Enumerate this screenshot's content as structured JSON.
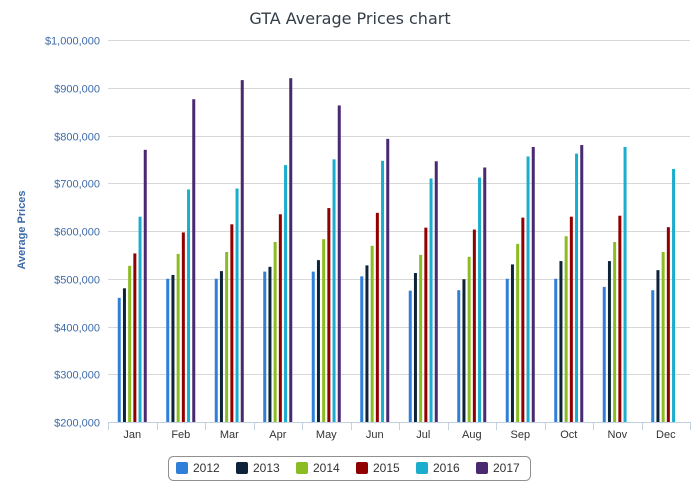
{
  "chart_data": {
    "type": "bar",
    "title": "GTA Average Prices chart",
    "xlabel": "",
    "ylabel": "Average Prices",
    "ylim": [
      200000,
      1000000
    ],
    "y_ticks": [
      200000,
      300000,
      400000,
      500000,
      600000,
      700000,
      800000,
      900000,
      1000000
    ],
    "y_tick_labels": [
      "$200,000",
      "$300,000",
      "$400,000",
      "$500,000",
      "$600,000",
      "$700,000",
      "$800,000",
      "$900,000",
      "$1,000,000"
    ],
    "grid": true,
    "legend_position": "bottom",
    "categories": [
      "Jan",
      "Feb",
      "Mar",
      "Apr",
      "May",
      "Jun",
      "Jul",
      "Aug",
      "Sep",
      "Oct",
      "Nov",
      "Dec"
    ],
    "series": [
      {
        "name": "2012",
        "color": "#2f7ed8",
        "values": [
          460000,
          500000,
          500000,
          515000,
          515000,
          505000,
          475000,
          476000,
          500000,
          500000,
          483000,
          476000
        ]
      },
      {
        "name": "2013",
        "color": "#0d233a",
        "values": [
          480000,
          508000,
          516000,
          525000,
          539000,
          528000,
          512000,
          499000,
          530000,
          537000,
          537000,
          518000
        ]
      },
      {
        "name": "2014",
        "color": "#8bbc21",
        "values": [
          527000,
          552000,
          556000,
          577000,
          583000,
          569000,
          550000,
          546000,
          573000,
          589000,
          577000,
          556000
        ]
      },
      {
        "name": "2015",
        "color": "#910000",
        "values": [
          553000,
          597000,
          614000,
          635000,
          648000,
          638000,
          607000,
          603000,
          628000,
          630000,
          632000,
          608000
        ]
      },
      {
        "name": "2016",
        "color": "#1aadce",
        "values": [
          630000,
          687000,
          689000,
          738000,
          750000,
          747000,
          710000,
          712000,
          756000,
          762000,
          776000,
          730000
        ]
      },
      {
        "name": "2017",
        "color": "#492970",
        "values": [
          770000,
          876000,
          916000,
          920000,
          863000,
          793000,
          746000,
          733000,
          776000,
          780000,
          null,
          null
        ]
      }
    ]
  }
}
